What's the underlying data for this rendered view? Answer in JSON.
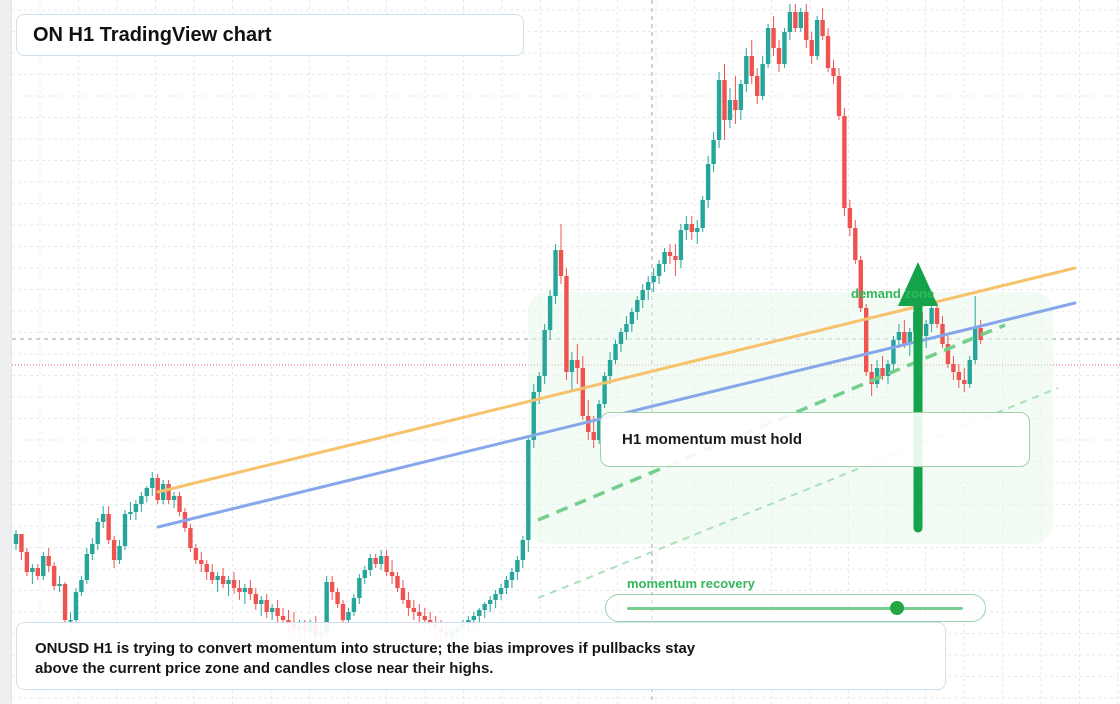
{
  "title": "ON H1 TradingView chart",
  "callout_text": "H1 momentum must hold",
  "caption_line1": "ONUSD H1 is trying to convert momentum into structure; the bias improves if pullbacks stay",
  "caption_line2": "above the current price zone and candles close near their highs.",
  "zone_label": "demand zone",
  "slider_label": "momentum recovery",
  "slider_value": 0.8,
  "colors": {
    "up": "#26a69a",
    "down": "#ef5350",
    "trendline_orange": "#f6c26b",
    "trendline_blue": "#86a8ea",
    "accent_green": "#14a34a"
  },
  "chart_data": {
    "type": "candlestick",
    "symbol": "ONUSD",
    "timeframe": "H1",
    "grid": true,
    "candles_ohlc": [
      [
        0.28,
        0.35,
        0.25,
        0.33
      ],
      [
        0.33,
        0.33,
        0.2,
        0.24
      ],
      [
        0.24,
        0.26,
        0.12,
        0.14
      ],
      [
        0.14,
        0.18,
        0.08,
        0.16
      ],
      [
        0.16,
        0.18,
        0.1,
        0.12
      ],
      [
        0.12,
        0.24,
        0.1,
        0.22
      ],
      [
        0.22,
        0.26,
        0.14,
        0.17
      ],
      [
        0.17,
        0.19,
        0.05,
        0.07
      ],
      [
        0.07,
        0.12,
        0.04,
        0.08
      ],
      [
        0.08,
        0.09,
        -0.12,
        -0.1
      ],
      [
        -0.1,
        -0.06,
        -0.16,
        -0.1
      ],
      [
        -0.1,
        0.06,
        -0.12,
        0.04
      ],
      [
        0.04,
        0.12,
        0.02,
        0.1
      ],
      [
        0.1,
        0.26,
        0.08,
        0.23
      ],
      [
        0.23,
        0.31,
        0.2,
        0.28
      ],
      [
        0.28,
        0.41,
        0.25,
        0.39
      ],
      [
        0.39,
        0.47,
        0.36,
        0.43
      ],
      [
        0.43,
        0.47,
        0.28,
        0.3
      ],
      [
        0.3,
        0.32,
        0.16,
        0.2
      ],
      [
        0.2,
        0.3,
        0.18,
        0.27
      ],
      [
        0.27,
        0.45,
        0.25,
        0.43
      ],
      [
        0.43,
        0.49,
        0.4,
        0.44
      ],
      [
        0.44,
        0.5,
        0.4,
        0.48
      ],
      [
        0.48,
        0.54,
        0.44,
        0.52
      ],
      [
        0.52,
        0.57,
        0.49,
        0.56
      ],
      [
        0.56,
        0.64,
        0.52,
        0.61
      ],
      [
        0.61,
        0.63,
        0.48,
        0.5
      ],
      [
        0.5,
        0.6,
        0.48,
        0.58
      ],
      [
        0.58,
        0.6,
        0.48,
        0.5
      ],
      [
        0.5,
        0.54,
        0.46,
        0.52
      ],
      [
        0.52,
        0.54,
        0.42,
        0.44
      ],
      [
        0.44,
        0.46,
        0.34,
        0.36
      ],
      [
        0.36,
        0.38,
        0.24,
        0.26
      ],
      [
        0.26,
        0.28,
        0.18,
        0.2
      ],
      [
        0.2,
        0.24,
        0.14,
        0.18
      ],
      [
        0.18,
        0.2,
        0.1,
        0.14
      ],
      [
        0.14,
        0.18,
        0.08,
        0.1
      ],
      [
        0.1,
        0.14,
        0.04,
        0.12
      ],
      [
        0.12,
        0.16,
        0.06,
        0.08
      ],
      [
        0.08,
        0.12,
        0.02,
        0.1
      ],
      [
        0.1,
        0.14,
        0.03,
        0.06
      ],
      [
        0.06,
        0.1,
        0.0,
        0.04
      ],
      [
        0.04,
        0.08,
        -0.02,
        0.06
      ],
      [
        0.06,
        0.1,
        0.0,
        0.03
      ],
      [
        0.03,
        0.06,
        -0.05,
        -0.02
      ],
      [
        -0.02,
        0.02,
        -0.08,
        0.0
      ],
      [
        0.0,
        0.03,
        -0.09,
        -0.06
      ],
      [
        -0.06,
        -0.02,
        -0.1,
        -0.04
      ],
      [
        -0.04,
        0.0,
        -0.12,
        -0.08
      ],
      [
        -0.08,
        -0.04,
        -0.13,
        -0.1
      ],
      [
        -0.1,
        -0.05,
        -0.16,
        -0.12
      ],
      [
        -0.12,
        -0.06,
        -0.18,
        -0.15
      ],
      [
        -0.15,
        -0.1,
        -0.21,
        -0.13
      ],
      [
        -0.13,
        -0.1,
        -0.19,
        -0.16
      ],
      [
        -0.16,
        -0.1,
        -0.2,
        -0.12
      ],
      [
        -0.12,
        -0.08,
        -0.2,
        -0.18
      ],
      [
        -0.18,
        -0.14,
        -0.24,
        -0.16
      ],
      [
        -0.16,
        0.12,
        -0.18,
        0.09
      ],
      [
        0.09,
        0.12,
        0.0,
        0.04
      ],
      [
        0.04,
        0.06,
        -0.04,
        -0.02
      ],
      [
        -0.02,
        0.0,
        -0.12,
        -0.1
      ],
      [
        -0.1,
        -0.04,
        -0.12,
        -0.06
      ],
      [
        -0.06,
        0.03,
        -0.08,
        0.01
      ],
      [
        0.01,
        0.13,
        -0.02,
        0.11
      ],
      [
        0.11,
        0.17,
        0.08,
        0.15
      ],
      [
        0.15,
        0.23,
        0.12,
        0.21
      ],
      [
        0.21,
        0.23,
        0.16,
        0.18
      ],
      [
        0.18,
        0.25,
        0.15,
        0.22
      ],
      [
        0.22,
        0.25,
        0.12,
        0.14
      ],
      [
        0.14,
        0.2,
        0.08,
        0.12
      ],
      [
        0.12,
        0.14,
        0.04,
        0.06
      ],
      [
        0.06,
        0.1,
        -0.02,
        0.0
      ],
      [
        0.0,
        0.04,
        -0.08,
        -0.04
      ],
      [
        -0.04,
        0.0,
        -0.1,
        -0.06
      ],
      [
        -0.06,
        -0.02,
        -0.12,
        -0.08
      ],
      [
        -0.08,
        -0.04,
        -0.14,
        -0.1
      ],
      [
        -0.1,
        -0.06,
        -0.16,
        -0.12
      ],
      [
        -0.12,
        -0.08,
        -0.18,
        -0.14
      ],
      [
        -0.14,
        -0.1,
        -0.2,
        -0.16
      ],
      [
        -0.16,
        -0.11,
        -0.21,
        -0.18
      ],
      [
        -0.18,
        -0.13,
        -0.22,
        -0.16
      ],
      [
        -0.16,
        -0.12,
        -0.2,
        -0.14
      ],
      [
        -0.14,
        -0.1,
        -0.19,
        -0.12
      ],
      [
        -0.12,
        -0.08,
        -0.17,
        -0.1
      ],
      [
        -0.1,
        -0.06,
        -0.14,
        -0.08
      ],
      [
        -0.08,
        -0.04,
        -0.12,
        -0.05
      ],
      [
        -0.05,
        -0.01,
        -0.09,
        -0.02
      ],
      [
        -0.02,
        0.02,
        -0.06,
        0.0
      ],
      [
        0.0,
        0.05,
        -0.04,
        0.03
      ],
      [
        0.03,
        0.08,
        0.0,
        0.06
      ],
      [
        0.06,
        0.12,
        0.03,
        0.1
      ],
      [
        0.1,
        0.16,
        0.06,
        0.14
      ],
      [
        0.14,
        0.22,
        0.1,
        0.2
      ],
      [
        0.2,
        0.32,
        0.16,
        0.3
      ],
      [
        0.3,
        0.82,
        0.24,
        0.8
      ],
      [
        0.8,
        1.08,
        0.76,
        1.04
      ],
      [
        1.04,
        1.14,
        0.98,
        1.12
      ],
      [
        1.12,
        1.38,
        1.08,
        1.35
      ],
      [
        1.35,
        1.55,
        1.3,
        1.52
      ],
      [
        1.52,
        1.78,
        1.48,
        1.75
      ],
      [
        1.75,
        1.88,
        1.58,
        1.62
      ],
      [
        1.62,
        1.66,
        1.1,
        1.14
      ],
      [
        1.14,
        1.24,
        1.05,
        1.2
      ],
      [
        1.2,
        1.28,
        1.08,
        1.16
      ],
      [
        1.16,
        1.22,
        0.9,
        0.92
      ],
      [
        0.92,
        1.0,
        0.8,
        0.84
      ],
      [
        0.84,
        0.92,
        0.76,
        0.8
      ],
      [
        0.8,
        1.0,
        0.78,
        0.98
      ],
      [
        0.98,
        1.14,
        0.96,
        1.12
      ],
      [
        1.12,
        1.24,
        1.08,
        1.2
      ],
      [
        1.2,
        1.3,
        1.18,
        1.28
      ],
      [
        1.28,
        1.36,
        1.24,
        1.34
      ],
      [
        1.34,
        1.42,
        1.3,
        1.38
      ],
      [
        1.38,
        1.46,
        1.34,
        1.44
      ],
      [
        1.44,
        1.52,
        1.4,
        1.5
      ],
      [
        1.5,
        1.58,
        1.46,
        1.55
      ],
      [
        1.55,
        1.62,
        1.5,
        1.59
      ],
      [
        1.59,
        1.66,
        1.54,
        1.62
      ],
      [
        1.62,
        1.7,
        1.58,
        1.68
      ],
      [
        1.68,
        1.76,
        1.64,
        1.74
      ],
      [
        1.74,
        1.78,
        1.68,
        1.72
      ],
      [
        1.72,
        1.78,
        1.62,
        1.7
      ],
      [
        1.7,
        1.88,
        1.66,
        1.85
      ],
      [
        1.85,
        1.92,
        1.8,
        1.88
      ],
      [
        1.88,
        1.92,
        1.8,
        1.84
      ],
      [
        1.84,
        1.9,
        1.78,
        1.86
      ],
      [
        1.86,
        2.02,
        1.84,
        2.0
      ],
      [
        2.0,
        2.22,
        1.96,
        2.18
      ],
      [
        2.18,
        2.34,
        2.14,
        2.3
      ],
      [
        2.3,
        2.64,
        2.26,
        2.6
      ],
      [
        2.6,
        2.68,
        2.3,
        2.4
      ],
      [
        2.4,
        2.56,
        2.36,
        2.5
      ],
      [
        2.5,
        2.62,
        2.38,
        2.45
      ],
      [
        2.45,
        2.6,
        2.4,
        2.58
      ],
      [
        2.58,
        2.76,
        2.54,
        2.72
      ],
      [
        2.72,
        2.8,
        2.58,
        2.62
      ],
      [
        2.62,
        2.66,
        2.48,
        2.52
      ],
      [
        2.52,
        2.72,
        2.5,
        2.68
      ],
      [
        2.68,
        2.88,
        2.66,
        2.86
      ],
      [
        2.86,
        2.92,
        2.72,
        2.76
      ],
      [
        2.76,
        2.8,
        2.64,
        2.68
      ],
      [
        2.68,
        2.86,
        2.66,
        2.84
      ],
      [
        2.84,
        2.98,
        2.8,
        2.94
      ],
      [
        2.94,
        2.98,
        2.84,
        2.86
      ],
      [
        2.86,
        2.96,
        2.84,
        2.94
      ],
      [
        2.94,
        2.98,
        2.76,
        2.8
      ],
      [
        2.8,
        2.84,
        2.68,
        2.72
      ],
      [
        2.72,
        2.92,
        2.7,
        2.9
      ],
      [
        2.9,
        2.96,
        2.8,
        2.82
      ],
      [
        2.82,
        2.86,
        2.64,
        2.66
      ],
      [
        2.66,
        2.7,
        2.58,
        2.62
      ],
      [
        2.62,
        2.66,
        2.4,
        2.42
      ],
      [
        2.42,
        2.46,
        1.92,
        1.96
      ],
      [
        1.96,
        2.0,
        1.82,
        1.86
      ],
      [
        1.86,
        1.9,
        1.68,
        1.7
      ],
      [
        1.7,
        1.72,
        1.44,
        1.46
      ],
      [
        1.46,
        1.48,
        1.12,
        1.14
      ],
      [
        1.14,
        1.18,
        1.02,
        1.08
      ],
      [
        1.08,
        1.2,
        1.06,
        1.16
      ],
      [
        1.16,
        1.22,
        1.1,
        1.12
      ],
      [
        1.12,
        1.2,
        1.08,
        1.18
      ],
      [
        1.18,
        1.32,
        1.14,
        1.3
      ],
      [
        1.3,
        1.38,
        1.26,
        1.34
      ],
      [
        1.34,
        1.4,
        1.26,
        1.28
      ],
      [
        1.28,
        1.36,
        1.22,
        1.34
      ],
      [
        1.34,
        1.48,
        1.3,
        1.44
      ],
      [
        1.44,
        1.5,
        1.28,
        1.32
      ],
      [
        1.32,
        1.4,
        1.26,
        1.38
      ],
      [
        1.38,
        1.48,
        1.34,
        1.46
      ],
      [
        1.46,
        1.5,
        1.36,
        1.38
      ],
      [
        1.38,
        1.42,
        1.26,
        1.28
      ],
      [
        1.28,
        1.32,
        1.16,
        1.18
      ],
      [
        1.18,
        1.22,
        1.1,
        1.14
      ],
      [
        1.14,
        1.18,
        1.06,
        1.1
      ],
      [
        1.1,
        1.16,
        1.04,
        1.08
      ],
      [
        1.08,
        1.22,
        1.06,
        1.2
      ],
      [
        1.2,
        1.52,
        1.18,
        1.36
      ],
      [
        1.36,
        1.4,
        1.28,
        1.3
      ]
    ]
  }
}
